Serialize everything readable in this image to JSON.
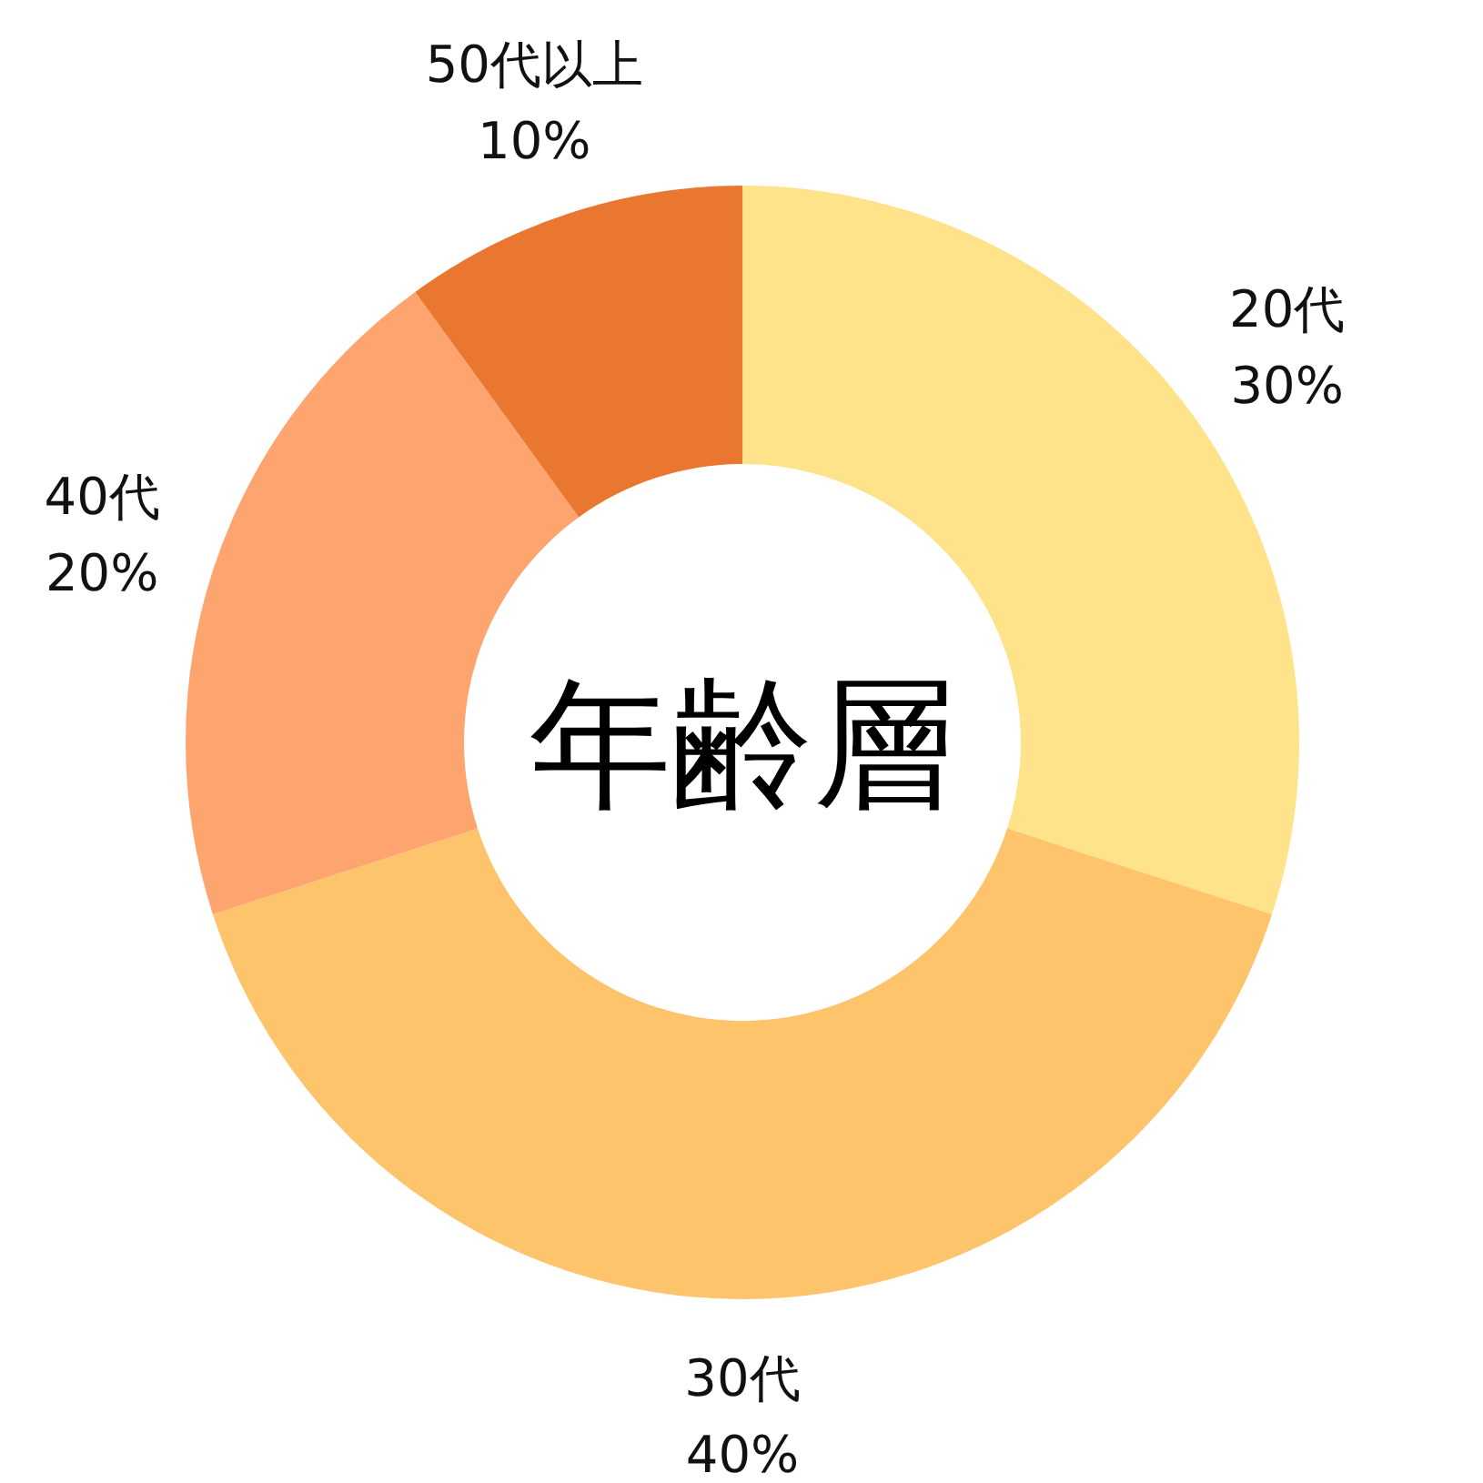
{
  "chart_data": {
    "type": "donut",
    "title": "年齢層",
    "categories": [
      "20代",
      "30代",
      "40代",
      "50代以上"
    ],
    "values": [
      30,
      40,
      20,
      10
    ],
    "value_labels": [
      "30%",
      "40%",
      "20%",
      "10%"
    ],
    "colors": [
      "#fee38a",
      "#fec46c",
      "#fea46f",
      "#ea772f"
    ]
  }
}
